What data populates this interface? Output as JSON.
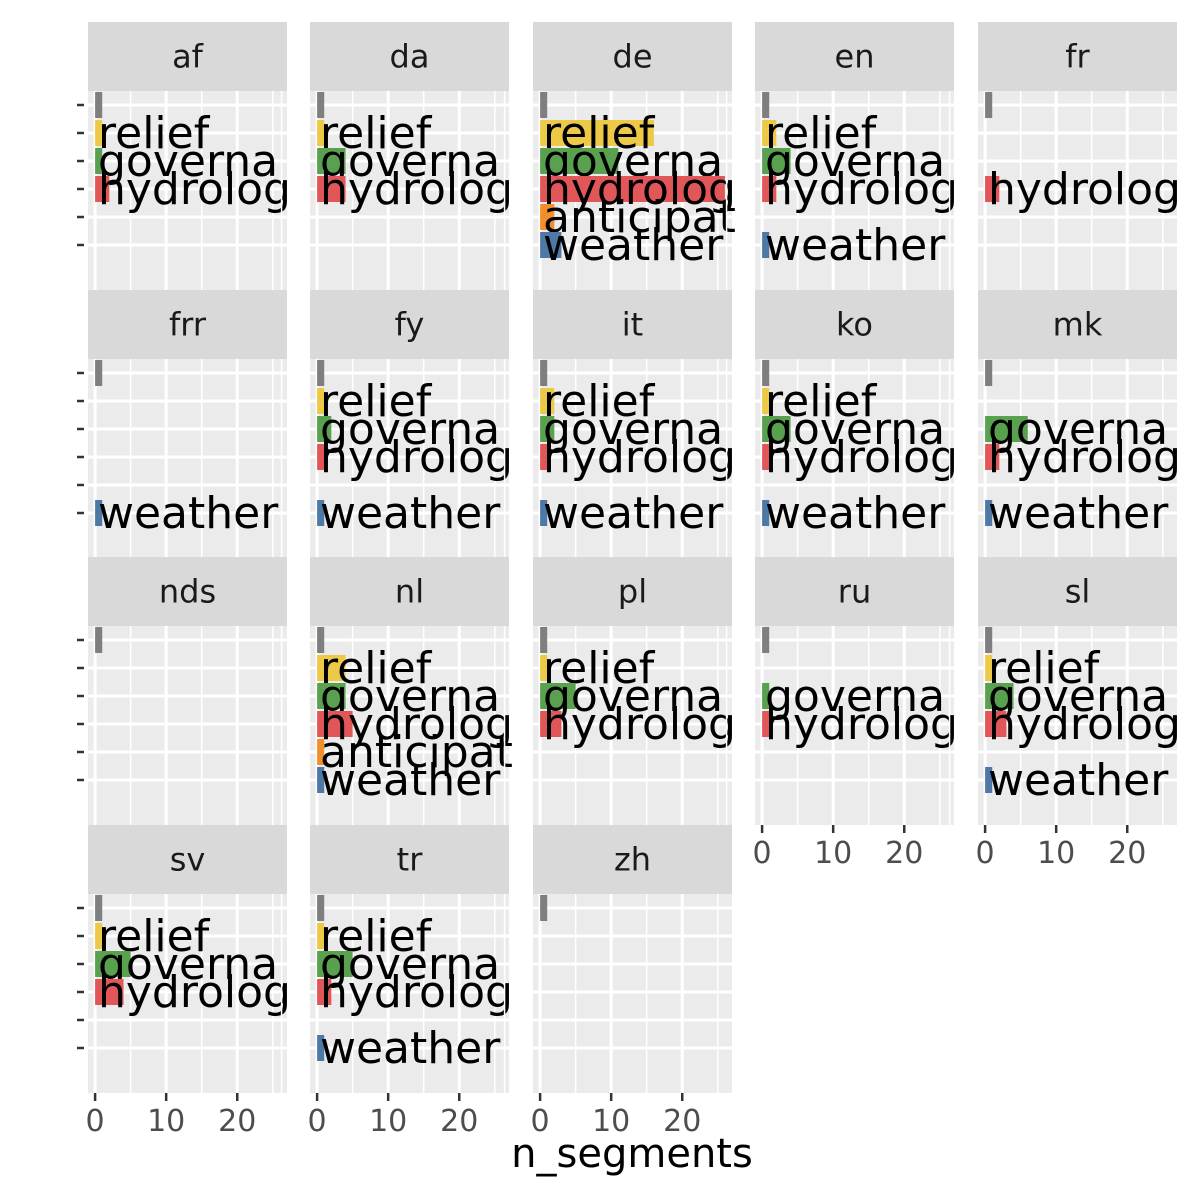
{
  "chart_data": {
    "type": "bar",
    "orientation": "horizontal",
    "facet_layout": "wrap",
    "xlabel": "n_segments",
    "ylabel": "",
    "xlim": [
      -1,
      27
    ],
    "x_ticks": [
      0,
      10,
      20
    ],
    "grid": true,
    "legend": "none",
    "colors": {
      "unlabeled": "#7F7F7F",
      "relief": "#EDC948",
      "governance": "#59A14F",
      "hydrology": "#E15759",
      "anticipation": "#F28E2B",
      "weather": "#4E79A7"
    },
    "category_order": [
      "unlabeled",
      "relief",
      "governance",
      "hydrology",
      "anticipation",
      "weather"
    ],
    "category_labels": {
      "unlabeled": "",
      "relief": "relief",
      "governance": "governa",
      "hydrology": "hydrolog",
      "anticipation": "anticipat",
      "weather": "weather"
    },
    "facets": [
      {
        "name": "af",
        "values": {
          "unlabeled": 1,
          "relief": 1,
          "governance": 1,
          "hydrology": 2,
          "anticipation": 0,
          "weather": 0
        }
      },
      {
        "name": "da",
        "values": {
          "unlabeled": 1,
          "relief": 1,
          "governance": 4,
          "hydrology": 4,
          "anticipation": 0,
          "weather": 0
        }
      },
      {
        "name": "de",
        "values": {
          "unlabeled": 1,
          "relief": 16,
          "governance": 11,
          "hydrology": 26,
          "anticipation": 2,
          "weather": 3
        }
      },
      {
        "name": "en",
        "values": {
          "unlabeled": 1,
          "relief": 2,
          "governance": 4,
          "hydrology": 2,
          "anticipation": 0,
          "weather": 1
        }
      },
      {
        "name": "fr",
        "values": {
          "unlabeled": 1,
          "relief": 0,
          "governance": 0,
          "hydrology": 2,
          "anticipation": 0,
          "weather": 0
        }
      },
      {
        "name": "frr",
        "values": {
          "unlabeled": 1,
          "relief": 0,
          "governance": 0,
          "hydrology": 0,
          "anticipation": 0,
          "weather": 1
        }
      },
      {
        "name": "fy",
        "values": {
          "unlabeled": 1,
          "relief": 1,
          "governance": 2,
          "hydrology": 1,
          "anticipation": 0,
          "weather": 1
        }
      },
      {
        "name": "it",
        "values": {
          "unlabeled": 1,
          "relief": 2,
          "governance": 2,
          "hydrology": 1,
          "anticipation": 0,
          "weather": 1
        }
      },
      {
        "name": "ko",
        "values": {
          "unlabeled": 1,
          "relief": 1,
          "governance": 4,
          "hydrology": 1,
          "anticipation": 0,
          "weather": 1
        }
      },
      {
        "name": "mk",
        "values": {
          "unlabeled": 1,
          "relief": 0,
          "governance": 6,
          "hydrology": 2,
          "anticipation": 0,
          "weather": 1
        }
      },
      {
        "name": "nds",
        "values": {
          "unlabeled": 1,
          "relief": 0,
          "governance": 0,
          "hydrology": 0,
          "anticipation": 0,
          "weather": 0
        }
      },
      {
        "name": "nl",
        "values": {
          "unlabeled": 1,
          "relief": 4,
          "governance": 4,
          "hydrology": 5,
          "anticipation": 1,
          "weather": 1
        }
      },
      {
        "name": "pl",
        "values": {
          "unlabeled": 1,
          "relief": 1,
          "governance": 5,
          "hydrology": 3,
          "anticipation": 0,
          "weather": 0
        }
      },
      {
        "name": "ru",
        "values": {
          "unlabeled": 1,
          "relief": 0,
          "governance": 1,
          "hydrology": 1,
          "anticipation": 0,
          "weather": 0
        }
      },
      {
        "name": "sl",
        "values": {
          "unlabeled": 1,
          "relief": 1,
          "governance": 4,
          "hydrology": 3,
          "anticipation": 0,
          "weather": 1
        }
      },
      {
        "name": "sv",
        "values": {
          "unlabeled": 1,
          "relief": 1,
          "governance": 5,
          "hydrology": 4,
          "anticipation": 0,
          "weather": 0
        }
      },
      {
        "name": "tr",
        "values": {
          "unlabeled": 1,
          "relief": 1,
          "governance": 5,
          "hydrology": 2,
          "anticipation": 0,
          "weather": 1
        }
      },
      {
        "name": "zh",
        "values": {
          "unlabeled": 1,
          "relief": 0,
          "governance": 0,
          "hydrology": 0,
          "anticipation": 0,
          "weather": 0
        }
      }
    ]
  }
}
